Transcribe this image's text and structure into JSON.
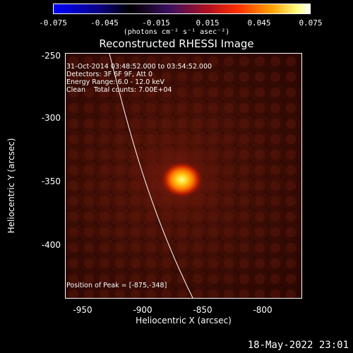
{
  "colorbar": {
    "ticks": [
      "-0.075",
      "-0.045",
      "-0.015",
      "0.015",
      "0.045",
      "0.075"
    ],
    "unit": "(photons cm⁻² s⁻¹ asec⁻²)",
    "range": [
      -0.075,
      0.075
    ]
  },
  "title": "Reconstructed RHESSI Image",
  "annotations": {
    "time": "31-Oct-2014 03:48:52.000 to 03:54:52.000",
    "detectors": "Detectors: 3F 6F 9F, Att 0",
    "energy": "Energy Range: 6.0 - 12.0 keV",
    "clean": "Clean    Total counts: 7.00E+04",
    "peak": "Position of Peak = [-875,-348]"
  },
  "axes": {
    "xlabel": "Heliocentric X (arcsec)",
    "ylabel": "Heliocentric Y (arcsec)",
    "xticks": [
      "-950",
      "-900",
      "-850",
      "-800"
    ],
    "yticks": [
      "-250",
      "-300",
      "-350",
      "-400"
    ],
    "xlim": [
      -972,
      -775
    ],
    "ylim": [
      -442,
      -248
    ]
  },
  "footer": {
    "timestamp": "18-May-2022 23:01"
  },
  "chart_data": {
    "type": "heatmap",
    "title": "Reconstructed RHESSI Image",
    "xlabel": "Heliocentric X (arcsec)",
    "ylabel": "Heliocentric Y (arcsec)",
    "xlim": [
      -972,
      -775
    ],
    "ylim": [
      -442,
      -248
    ],
    "color_range": [
      -0.075,
      0.075
    ],
    "peak": {
      "x": -875,
      "y": -348
    },
    "colormap": "hot"
  }
}
